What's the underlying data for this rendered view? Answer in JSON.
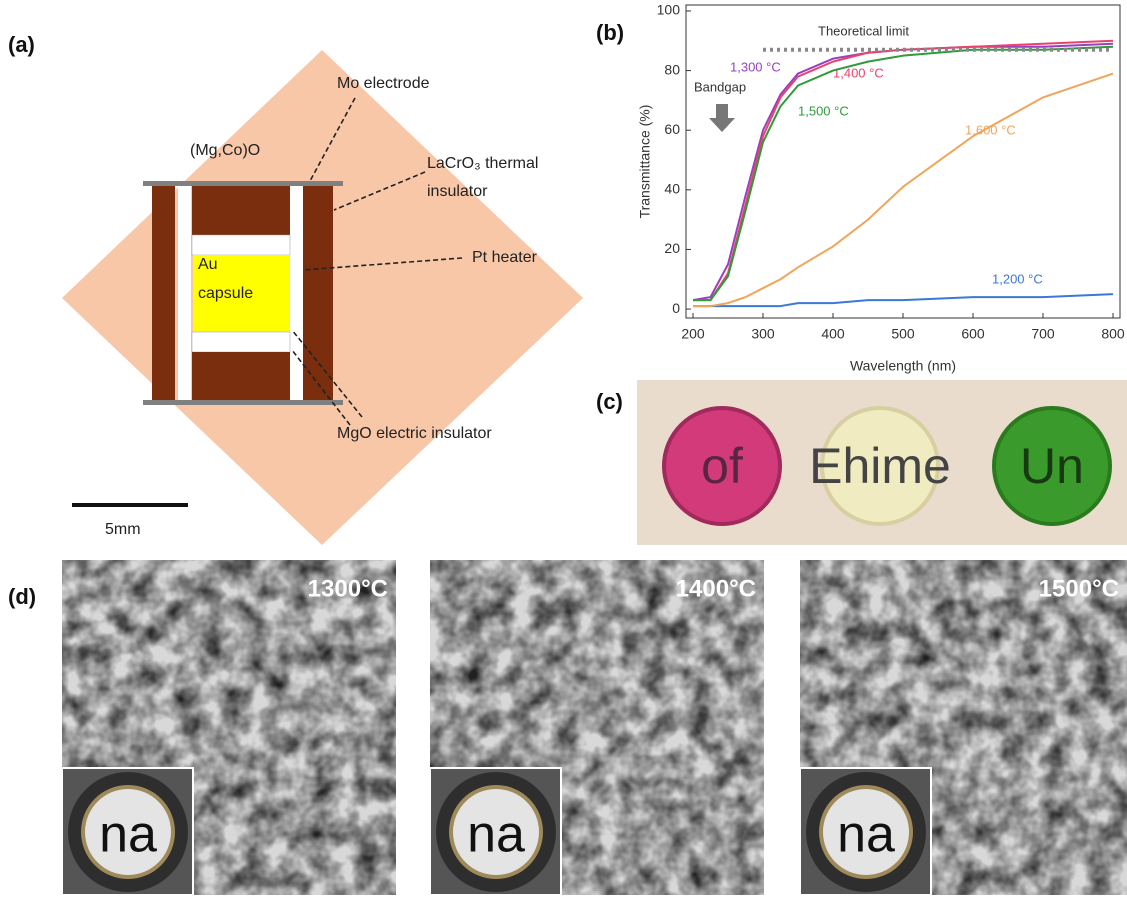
{
  "panel_a": {
    "label": "(a)",
    "outer": "(Mg,Co)O",
    "electrode": "Mo electrode",
    "insulator_1": "LaCrO₃ thermal",
    "insulator_2": "insulator",
    "heater": "Pt heater",
    "capsule_1": "Au",
    "capsule_2": "capsule",
    "mgo": "MgO electric insulator",
    "scale_bar": "5mm"
  },
  "chart_data": {
    "type": "line",
    "panel_label": "(b)",
    "xlabel": "Wavelength (nm)",
    "ylabel": "Transmittance (%)",
    "annotation": "Bandgap",
    "x": [
      200,
      225,
      250,
      275,
      300,
      325,
      350,
      400,
      450,
      500,
      600,
      700,
      800
    ],
    "series": [
      {
        "name": "1,200 °C",
        "color": "#3b78d8",
        "values": [
          1,
          1,
          1,
          1,
          1,
          1,
          2,
          2,
          3,
          3,
          4,
          4,
          5
        ]
      },
      {
        "name": "1,300 °C",
        "color": "#9b3fc0",
        "values": [
          3,
          4,
          15,
          38,
          60,
          72,
          79,
          84,
          86,
          87,
          88,
          88,
          89
        ]
      },
      {
        "name": "1,400 °C",
        "color": "#e8436b",
        "values": [
          3,
          3,
          12,
          35,
          58,
          71,
          78,
          83,
          86,
          87,
          88,
          89,
          90
        ]
      },
      {
        "name": "1,500 °C",
        "color": "#2f9a3a",
        "values": [
          3,
          3,
          11,
          33,
          56,
          68,
          75,
          80,
          83,
          85,
          87,
          87,
          88
        ]
      },
      {
        "name": "1,600 °C",
        "color": "#f0a55a",
        "values": [
          1,
          1,
          2,
          4,
          7,
          10,
          14,
          21,
          30,
          41,
          58,
          71,
          79
        ]
      },
      {
        "name": "Theoretical limit",
        "color": "#888888",
        "dashed": true,
        "values": [
          null,
          null,
          null,
          null,
          87,
          87,
          87,
          87,
          87,
          87,
          87,
          87,
          87
        ]
      }
    ],
    "xlim": [
      190,
      810
    ],
    "ylim": [
      -3,
      102
    ],
    "xticks": [
      200,
      300,
      400,
      500,
      600,
      700,
      800
    ],
    "yticks": [
      0,
      20,
      40,
      60,
      80,
      100
    ]
  },
  "panel_c": {
    "label": "(c)",
    "sample_texts": [
      "of",
      "Ehime",
      "Un"
    ]
  },
  "panel_d": {
    "label": "(d)",
    "images": [
      {
        "temperature": "1300°C",
        "inset_text": "na"
      },
      {
        "temperature": "1400°C",
        "inset_text": "na"
      },
      {
        "temperature": "1500°C",
        "inset_text": "na"
      }
    ]
  }
}
